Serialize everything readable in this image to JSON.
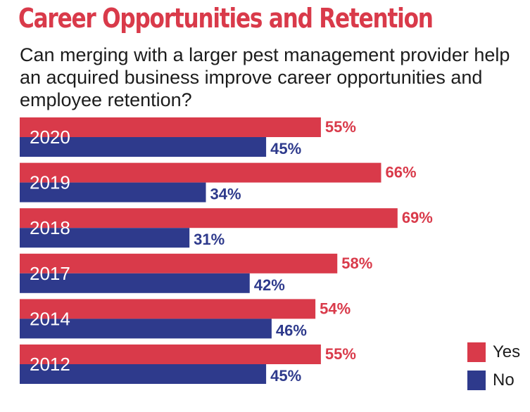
{
  "title": "Career Opportunities and Retention",
  "subtitle": "Can merging with a larger pest management provider help an acquired business improve career opportunities and employee retention?",
  "colors": {
    "yes": "#d93a4a",
    "no": "#2e3a8c",
    "title": "#d93a4a"
  },
  "chart_data": {
    "type": "bar",
    "orientation": "horizontal",
    "categories": [
      "2020",
      "2019",
      "2018",
      "2017",
      "2014",
      "2012"
    ],
    "series": [
      {
        "name": "Yes",
        "values": [
          55,
          66,
          69,
          58,
          54,
          55
        ],
        "labels": [
          "55%",
          "66%",
          "69%",
          "58%",
          "54%",
          "55%"
        ]
      },
      {
        "name": "No",
        "values": [
          45,
          34,
          31,
          42,
          46,
          45
        ],
        "labels": [
          "45%",
          "34%",
          "31%",
          "42%",
          "46%",
          "45%"
        ]
      }
    ],
    "xlim": [
      0,
      100
    ],
    "legend": {
      "position": "bottom-right",
      "items": [
        "Yes",
        "No"
      ]
    }
  }
}
